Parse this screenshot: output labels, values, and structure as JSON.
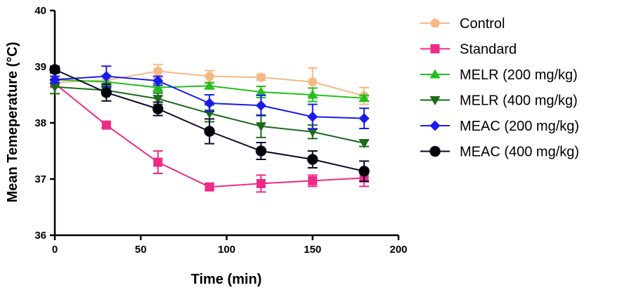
{
  "chart_data": {
    "type": "line",
    "xlabel": "Time (min)",
    "ylabel": "Mean Temeperature (°C)",
    "xlim": [
      0,
      200
    ],
    "ylim": [
      36,
      40
    ],
    "xticks": [
      0,
      50,
      100,
      150,
      200
    ],
    "yticks": [
      36,
      37,
      38,
      39,
      40
    ],
    "grid": false,
    "legend_position": "right",
    "x": [
      0,
      30,
      60,
      90,
      120,
      150,
      180
    ],
    "series": [
      {
        "name": "Control",
        "color": "#f5b985",
        "marker": "circle",
        "values": [
          38.72,
          38.76,
          38.92,
          38.83,
          38.81,
          38.73,
          38.48
        ],
        "errors": [
          0.07,
          0.06,
          0.12,
          0.1,
          0.05,
          0.25,
          0.15
        ]
      },
      {
        "name": "Standard",
        "color": "#ee2a87",
        "marker": "square",
        "values": [
          38.7,
          37.96,
          37.3,
          36.86,
          36.92,
          36.97,
          37.02
        ],
        "errors": [
          0.06,
          0.05,
          0.2,
          0.05,
          0.15,
          0.1,
          0.15
        ]
      },
      {
        "name": " MELR (200 mg/kg)",
        "color": "#22c01a",
        "marker": "triangle-up",
        "values": [
          38.77,
          38.73,
          38.63,
          38.66,
          38.55,
          38.5,
          38.44
        ],
        "errors": [
          0.06,
          0.12,
          0.07,
          0.05,
          0.1,
          0.12,
          0.05
        ]
      },
      {
        "name": "MELR (400 mg/kg)",
        "color": "#1c6a1c",
        "marker": "triangle-down",
        "values": [
          38.64,
          38.58,
          38.43,
          38.17,
          37.94,
          37.84,
          37.64
        ],
        "errors": [
          0.12,
          0.05,
          0.1,
          0.15,
          0.2,
          0.12,
          0.06
        ]
      },
      {
        "name": "MEAC (200 mg/kg)",
        "color": "#1b1bf0",
        "marker": "diamond",
        "values": [
          38.77,
          38.83,
          38.75,
          38.35,
          38.31,
          38.11,
          38.08
        ],
        "errors": [
          0.06,
          0.18,
          0.08,
          0.15,
          0.18,
          0.22,
          0.18
        ]
      },
      {
        "name": "MEAC (400 mg/kg)",
        "color": "#0a0a2a",
        "marker": "circle-black",
        "values": [
          38.95,
          38.54,
          38.25,
          37.85,
          37.5,
          37.35,
          37.14
        ],
        "errors": [
          0.06,
          0.15,
          0.12,
          0.22,
          0.15,
          0.15,
          0.18
        ]
      }
    ]
  }
}
